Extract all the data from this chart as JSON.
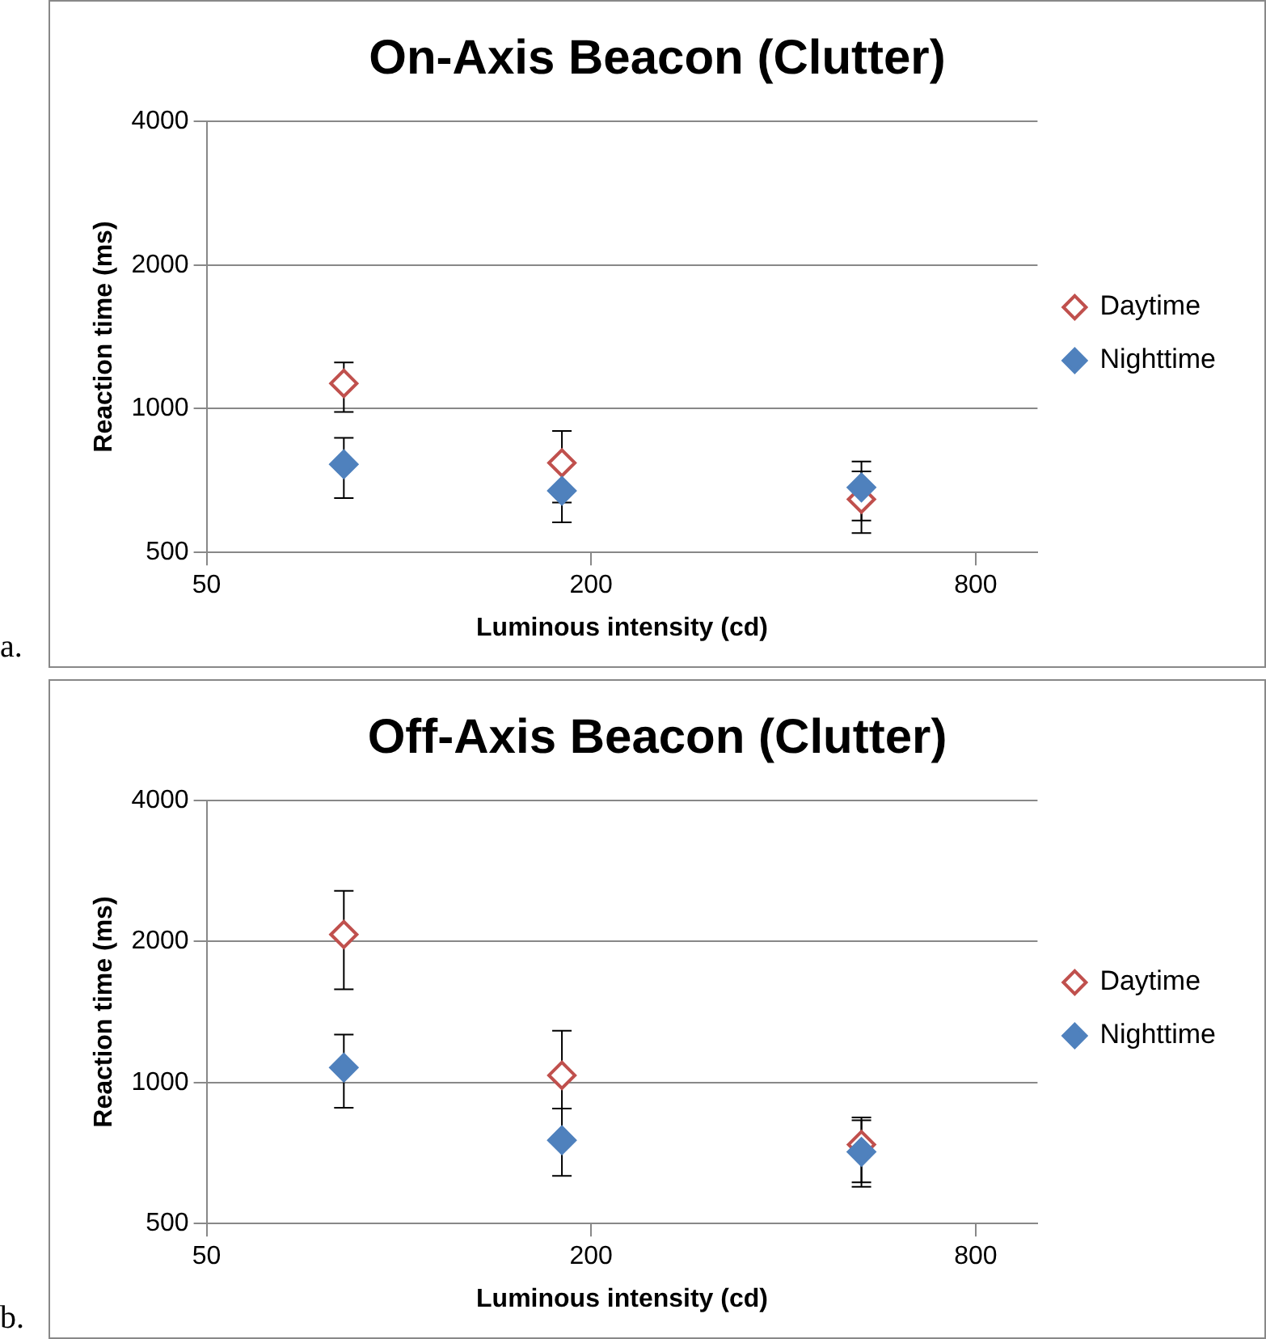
{
  "chart_data": [
    {
      "type": "scatter",
      "title": "On-Axis Beacon (Clutter)",
      "xlabel": "Luminous intensity (cd)",
      "ylabel": "Reaction time (ms)",
      "log": "xy",
      "xlim": [
        50,
        1000
      ],
      "xticks": [
        50,
        200,
        800
      ],
      "ylim": [
        500,
        4000
      ],
      "yticks": [
        500,
        1000,
        2000,
        4000
      ],
      "grid": "y",
      "legend": "right",
      "marker": "diamond",
      "annotations": [
        "a."
      ],
      "series": [
        {
          "name": "Daytime",
          "color": "#c0504d",
          "x": [
            82,
            180,
            530
          ],
          "values": [
            1130,
            770,
            646
          ],
          "errors": [
            [
              984,
              1250
            ],
            [
              636,
              898
            ],
            [
              549,
              739
            ]
          ]
        },
        {
          "name": "Nighttime",
          "color": "#4f81bd",
          "x": [
            82,
            180,
            530
          ],
          "values": [
            765,
            673,
            684
          ],
          "errors": [
            [
              650,
              869
            ],
            [
              578,
              775
            ],
            [
              583,
              775
            ]
          ]
        }
      ]
    },
    {
      "type": "scatter",
      "title": "Off-Axis Beacon (Clutter)",
      "xlabel": "Luminous intensity (cd)",
      "ylabel": "Reaction time (ms)",
      "log": "xy",
      "xlim": [
        50,
        1000
      ],
      "xticks": [
        50,
        200,
        800
      ],
      "ylim": [
        500,
        4000
      ],
      "yticks": [
        500,
        1000,
        2000,
        4000
      ],
      "grid": "y",
      "legend": "right",
      "marker": "diamond",
      "annotations": [
        "b."
      ],
      "series": [
        {
          "name": "Daytime",
          "color": "#c0504d",
          "x": [
            82,
            180,
            530
          ],
          "values": [
            2070,
            1036,
            737
          ],
          "errors": [
            [
              1582,
              2566
            ],
            [
              880,
              1290
            ],
            [
              599,
              842
            ]
          ]
        },
        {
          "name": "Nighttime",
          "color": "#4f81bd",
          "x": [
            82,
            180,
            530
          ],
          "values": [
            1076,
            753,
            711
          ],
          "errors": [
            [
              883,
              1266
            ],
            [
              632,
              880
            ],
            [
              612,
              831
            ]
          ]
        }
      ]
    }
  ]
}
